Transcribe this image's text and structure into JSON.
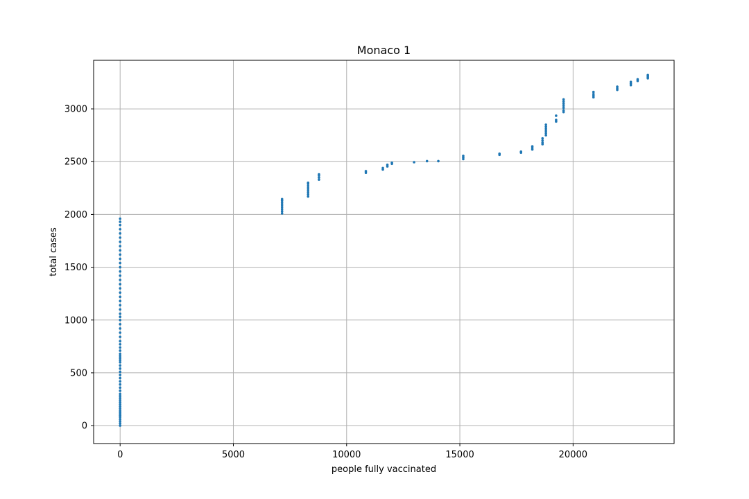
{
  "chart_data": {
    "type": "scatter",
    "title": "Monaco 1",
    "xlabel": "people fully vaccinated",
    "ylabel": "total cases",
    "xlim": [
      -1170,
      24460
    ],
    "ylim": [
      -170,
      3460
    ],
    "xticks": [
      0,
      5000,
      10000,
      15000,
      20000
    ],
    "yticks": [
      0,
      500,
      1000,
      1500,
      2000,
      2500,
      3000
    ],
    "grid": true,
    "marker_color": "#1f77b4",
    "series": [
      {
        "name": "total cases",
        "points": [
          [
            0,
            0
          ],
          [
            0,
            20
          ],
          [
            0,
            40
          ],
          [
            0,
            60
          ],
          [
            0,
            80
          ],
          [
            0,
            95
          ],
          [
            0,
            110
          ],
          [
            0,
            125
          ],
          [
            0,
            140
          ],
          [
            0,
            160
          ],
          [
            0,
            180
          ],
          [
            0,
            200
          ],
          [
            0,
            220
          ],
          [
            0,
            240
          ],
          [
            0,
            260
          ],
          [
            0,
            280
          ],
          [
            0,
            300
          ],
          [
            0,
            330
          ],
          [
            0,
            360
          ],
          [
            0,
            390
          ],
          [
            0,
            420
          ],
          [
            0,
            450
          ],
          [
            0,
            480
          ],
          [
            0,
            510
          ],
          [
            0,
            540
          ],
          [
            0,
            570
          ],
          [
            0,
            600
          ],
          [
            0,
            620
          ],
          [
            0,
            640
          ],
          [
            0,
            660
          ],
          [
            0,
            680
          ],
          [
            0,
            710
          ],
          [
            0,
            740
          ],
          [
            0,
            770
          ],
          [
            0,
            800
          ],
          [
            0,
            840
          ],
          [
            0,
            880
          ],
          [
            0,
            920
          ],
          [
            0,
            960
          ],
          [
            0,
            1000
          ],
          [
            0,
            1030
          ],
          [
            0,
            1060
          ],
          [
            0,
            1100
          ],
          [
            0,
            1140
          ],
          [
            0,
            1180
          ],
          [
            0,
            1220
          ],
          [
            0,
            1260
          ],
          [
            0,
            1300
          ],
          [
            0,
            1340
          ],
          [
            0,
            1380
          ],
          [
            0,
            1420
          ],
          [
            0,
            1460
          ],
          [
            0,
            1500
          ],
          [
            0,
            1540
          ],
          [
            0,
            1580
          ],
          [
            0,
            1620
          ],
          [
            0,
            1660
          ],
          [
            0,
            1700
          ],
          [
            0,
            1740
          ],
          [
            0,
            1780
          ],
          [
            0,
            1820
          ],
          [
            0,
            1860
          ],
          [
            0,
            1900
          ],
          [
            0,
            1930
          ],
          [
            0,
            1960
          ],
          [
            7150,
            2010
          ],
          [
            7150,
            2030
          ],
          [
            7150,
            2050
          ],
          [
            7150,
            2070
          ],
          [
            7150,
            2090
          ],
          [
            7150,
            2110
          ],
          [
            7150,
            2130
          ],
          [
            7150,
            2145
          ],
          [
            8300,
            2170
          ],
          [
            8300,
            2190
          ],
          [
            8300,
            2210
          ],
          [
            8300,
            2230
          ],
          [
            8300,
            2250
          ],
          [
            8300,
            2270
          ],
          [
            8300,
            2290
          ],
          [
            8300,
            2300
          ],
          [
            8780,
            2330
          ],
          [
            8780,
            2350
          ],
          [
            8780,
            2370
          ],
          [
            8780,
            2380
          ],
          [
            10850,
            2395
          ],
          [
            10850,
            2410
          ],
          [
            11600,
            2425
          ],
          [
            11600,
            2440
          ],
          [
            11800,
            2455
          ],
          [
            11800,
            2470
          ],
          [
            12000,
            2480
          ],
          [
            12000,
            2490
          ],
          [
            12980,
            2495
          ],
          [
            13550,
            2505
          ],
          [
            14050,
            2505
          ],
          [
            15150,
            2525
          ],
          [
            15150,
            2540
          ],
          [
            15150,
            2555
          ],
          [
            16750,
            2565
          ],
          [
            16750,
            2575
          ],
          [
            17700,
            2585
          ],
          [
            17700,
            2595
          ],
          [
            18200,
            2615
          ],
          [
            18200,
            2630
          ],
          [
            18200,
            2645
          ],
          [
            18650,
            2665
          ],
          [
            18650,
            2680
          ],
          [
            18650,
            2700
          ],
          [
            18650,
            2720
          ],
          [
            18800,
            2750
          ],
          [
            18800,
            2770
          ],
          [
            18800,
            2790
          ],
          [
            18800,
            2810
          ],
          [
            18800,
            2830
          ],
          [
            18800,
            2850
          ],
          [
            19250,
            2880
          ],
          [
            19250,
            2895
          ],
          [
            19250,
            2935
          ],
          [
            19580,
            2970
          ],
          [
            19580,
            2985
          ],
          [
            19580,
            3010
          ],
          [
            19580,
            3030
          ],
          [
            19580,
            3050
          ],
          [
            19580,
            3070
          ],
          [
            19580,
            3090
          ],
          [
            20900,
            3110
          ],
          [
            20900,
            3125
          ],
          [
            20900,
            3140
          ],
          [
            20900,
            3160
          ],
          [
            21950,
            3180
          ],
          [
            21950,
            3195
          ],
          [
            21950,
            3210
          ],
          [
            22550,
            3225
          ],
          [
            22550,
            3240
          ],
          [
            22550,
            3255
          ],
          [
            22850,
            3265
          ],
          [
            22850,
            3280
          ],
          [
            23300,
            3290
          ],
          [
            23300,
            3300
          ],
          [
            23300,
            3310
          ],
          [
            23300,
            3320
          ]
        ]
      }
    ]
  }
}
